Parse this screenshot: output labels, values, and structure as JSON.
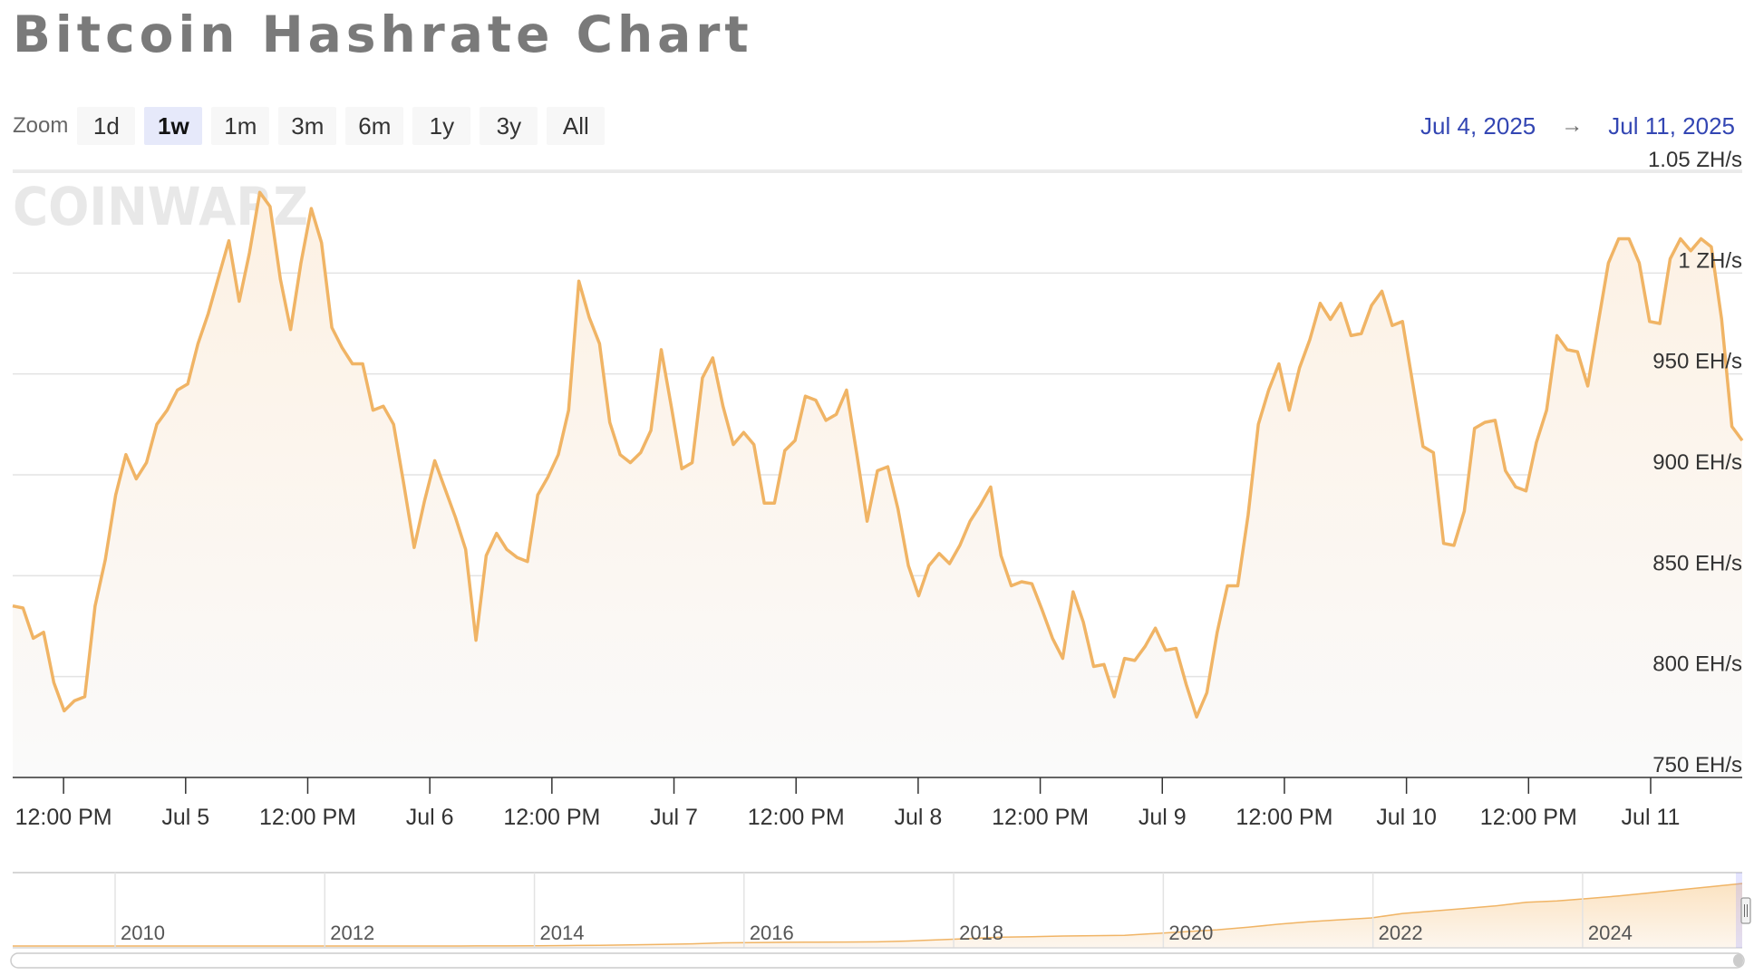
{
  "title": "Bitcoin Hashrate Chart",
  "watermark": "COINWARZ",
  "zoom": {
    "label": "Zoom",
    "buttons": [
      "1d",
      "1w",
      "1m",
      "3m",
      "6m",
      "1y",
      "3y",
      "All"
    ],
    "active": "1w"
  },
  "date_range": {
    "from": "Jul 4, 2025",
    "to": "Jul 11, 2025"
  },
  "colors": {
    "series": "#f0b465",
    "area_top": "#fdf1e3",
    "grid": "#e3e3e3",
    "axis": "#333333",
    "link": "#3346b3"
  },
  "chart_data": {
    "type": "area",
    "series": [
      {
        "name": "",
        "x_range": [
          "2025-07-04 07:00",
          "2025-07-11 09:00"
        ],
        "values": [
          835,
          834,
          819,
          822,
          797,
          783,
          788,
          790,
          835,
          858,
          890,
          910,
          898,
          906,
          925,
          932,
          942,
          945,
          965,
          980,
          998,
          1016,
          986,
          1010,
          1040,
          1033,
          997,
          972,
          1005,
          1032,
          1015,
          973,
          963,
          955,
          955,
          932,
          934,
          925,
          895,
          864,
          887,
          907,
          893,
          879,
          863,
          818,
          860,
          871,
          863,
          859,
          857,
          890,
          899,
          910,
          932,
          996,
          978,
          965,
          926,
          910,
          906,
          911,
          922,
          962,
          933,
          903,
          906,
          948,
          958,
          934,
          915,
          921,
          915,
          886,
          886,
          912,
          917,
          939,
          937,
          927,
          930,
          942,
          910,
          877,
          902,
          904,
          883,
          855,
          840,
          855,
          861,
          856,
          865,
          877,
          885,
          894,
          860,
          845,
          847,
          846,
          833,
          819,
          809,
          842,
          827,
          805,
          806,
          790,
          809,
          808,
          815,
          824,
          813,
          814,
          796,
          780,
          792,
          822,
          845,
          845,
          880,
          925,
          942,
          955,
          932,
          953,
          967,
          985,
          977,
          985,
          969,
          970,
          984,
          991,
          974,
          976,
          945,
          914,
          911,
          866,
          865,
          882,
          923,
          926,
          927,
          902,
          894,
          892,
          916,
          932,
          969,
          962,
          961,
          944,
          975,
          1005,
          1017,
          1017,
          1005,
          976,
          975,
          1007,
          1017,
          1011,
          1017,
          1013,
          977,
          924,
          917
        ]
      }
    ],
    "y_ticks": [
      "750 EH/s",
      "800 EH/s",
      "850 EH/s",
      "900 EH/s",
      "950 EH/s",
      "1 ZH/s",
      "1.05 ZH/s"
    ],
    "y_tick_values": [
      750,
      800,
      850,
      900,
      950,
      1000,
      1050
    ],
    "ylim": [
      750,
      1050
    ],
    "y_unit": "EH/s",
    "x_ticks": [
      "12:00 PM",
      "Jul 5",
      "12:00 PM",
      "Jul 6",
      "12:00 PM",
      "Jul 7",
      "12:00 PM",
      "Jul 8",
      "12:00 PM",
      "Jul 9",
      "12:00 PM",
      "Jul 10",
      "12:00 PM",
      "Jul 11"
    ],
    "x_tick_values": [
      "2025-07-04 12:00",
      "2025-07-05 00:00",
      "2025-07-05 12:00",
      "2025-07-06 00:00",
      "2025-07-06 12:00",
      "2025-07-07 00:00",
      "2025-07-07 12:00",
      "2025-07-08 00:00",
      "2025-07-08 12:00",
      "2025-07-09 00:00",
      "2025-07-09 12:00",
      "2025-07-10 00:00",
      "2025-07-10 12:00",
      "2025-07-11 00:00"
    ],
    "grid": true,
    "legend": "none",
    "navigator": {
      "year_labels": [
        "2010",
        "2012",
        "2014",
        "2016",
        "2018",
        "2020",
        "2022",
        "2024"
      ],
      "overview_values": [
        0,
        0,
        0,
        0,
        0,
        0,
        0,
        0,
        0,
        0,
        0,
        0,
        0.1,
        0.3,
        0.6,
        1,
        2,
        4,
        7,
        12,
        18,
        25,
        35,
        50,
        55,
        60,
        62,
        64,
        66,
        80,
        100,
        120,
        140,
        150,
        160,
        165,
        170,
        200,
        230,
        260,
        300,
        350,
        390,
        420,
        450,
        520,
        560,
        600,
        640,
        700,
        720,
        760,
        800,
        850,
        900,
        950,
        1000
      ]
    }
  }
}
